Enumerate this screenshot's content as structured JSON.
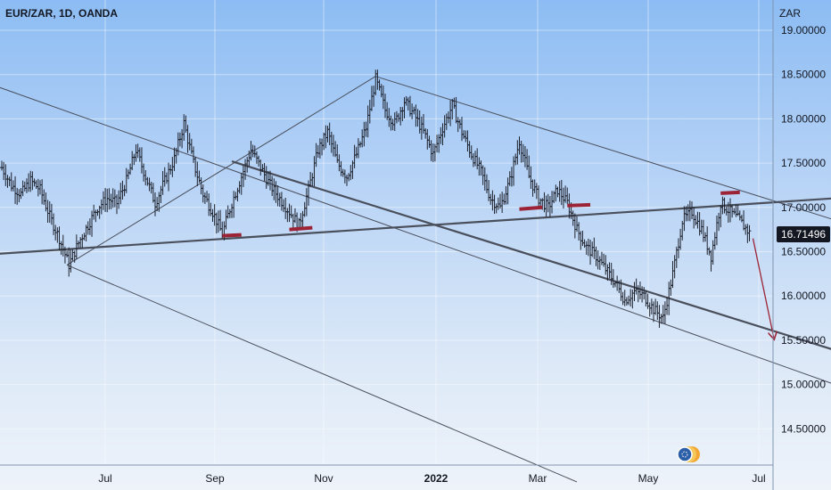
{
  "chart_data": {
    "type": "ohlc-bar",
    "title": "EUR/ZAR, 1D, OANDA",
    "currency": "ZAR",
    "current_price": "16.71496",
    "y_ticks": [
      "19.00000",
      "18.50000",
      "18.00000",
      "17.50000",
      "17.00000",
      "16.50000",
      "16.00000",
      "15.50000",
      "15.00000",
      "14.50000"
    ],
    "y_tick_values": [
      19.0,
      18.5,
      18.0,
      17.5,
      17.0,
      16.5,
      16.0,
      15.5,
      15.0,
      14.5
    ],
    "x_ticks": [
      {
        "label": "Jul",
        "bold": false
      },
      {
        "label": "Sep",
        "bold": false
      },
      {
        "label": "Nov",
        "bold": false
      },
      {
        "label": "2022",
        "bold": true
      },
      {
        "label": "Mar",
        "bold": false
      },
      {
        "label": "May",
        "bold": false
      },
      {
        "label": "Jul",
        "bold": false
      }
    ],
    "grid": true,
    "colors": {
      "bars": "#1e222d",
      "trendlines": "#4a4f5c",
      "support_marks": "#9b2335",
      "arrow": "#9b2335",
      "price_tag_bg": "#131722"
    },
    "price_path": [
      [
        0,
        17.45
      ],
      [
        5,
        17.25
      ],
      [
        10,
        17.15
      ],
      [
        15,
        17.3
      ],
      [
        20,
        17.2
      ],
      [
        25,
        16.9
      ],
      [
        30,
        16.65
      ],
      [
        35,
        16.35
      ],
      [
        40,
        16.6
      ],
      [
        45,
        16.8
      ],
      [
        50,
        17.0
      ],
      [
        55,
        17.1
      ],
      [
        60,
        17.05
      ],
      [
        65,
        17.3
      ],
      [
        70,
        17.65
      ],
      [
        75,
        17.35
      ],
      [
        80,
        17.05
      ],
      [
        85,
        17.3
      ],
      [
        90,
        17.55
      ],
      [
        95,
        17.95
      ],
      [
        100,
        17.5
      ],
      [
        105,
        17.15
      ],
      [
        110,
        16.95
      ],
      [
        115,
        16.7
      ],
      [
        120,
        17.05
      ],
      [
        125,
        17.35
      ],
      [
        130,
        17.65
      ],
      [
        135,
        17.45
      ],
      [
        140,
        17.25
      ],
      [
        145,
        17.1
      ],
      [
        150,
        16.95
      ],
      [
        155,
        16.8
      ],
      [
        160,
        17.2
      ],
      [
        165,
        17.65
      ],
      [
        170,
        17.85
      ],
      [
        175,
        17.5
      ],
      [
        180,
        17.35
      ],
      [
        185,
        17.6
      ],
      [
        190,
        17.9
      ],
      [
        195,
        18.45
      ],
      [
        200,
        18.1
      ],
      [
        205,
        17.95
      ],
      [
        210,
        18.2
      ],
      [
        215,
        18.05
      ],
      [
        220,
        17.85
      ],
      [
        225,
        17.6
      ],
      [
        230,
        17.9
      ],
      [
        235,
        18.15
      ],
      [
        240,
        17.85
      ],
      [
        245,
        17.6
      ],
      [
        250,
        17.4
      ],
      [
        255,
        17.1
      ],
      [
        260,
        17.0
      ],
      [
        265,
        17.3
      ],
      [
        270,
        17.75
      ],
      [
        275,
        17.35
      ],
      [
        280,
        17.1
      ],
      [
        285,
        17.0
      ],
      [
        290,
        17.2
      ],
      [
        295,
        17.05
      ],
      [
        300,
        16.75
      ],
      [
        305,
        16.55
      ],
      [
        310,
        16.45
      ],
      [
        315,
        16.3
      ],
      [
        320,
        16.15
      ],
      [
        325,
        15.95
      ],
      [
        330,
        16.05
      ],
      [
        335,
        16.0
      ],
      [
        340,
        15.85
      ],
      [
        345,
        15.75
      ],
      [
        350,
        16.25
      ],
      [
        355,
        16.85
      ],
      [
        360,
        16.95
      ],
      [
        365,
        16.75
      ],
      [
        370,
        16.45
      ],
      [
        375,
        17.05
      ],
      [
        380,
        16.95
      ],
      [
        385,
        16.85
      ],
      [
        390,
        16.71
      ]
    ],
    "trendlines": [
      {
        "name": "ascending-support-line",
        "from": [
          -20,
          16.45
        ],
        "to": [
          488,
          17.18
        ],
        "width": 2.2
      },
      {
        "name": "descending-channel-upper",
        "from": [
          195,
          18.48
        ],
        "to": [
          480,
          16.55
        ],
        "width": 1
      },
      {
        "name": "descending-channel-mid",
        "from": [
          -20,
          18.5
        ],
        "to": [
          480,
          14.65
        ],
        "width": 1
      },
      {
        "name": "descending-channel-lower",
        "from": [
          120,
          17.52
        ],
        "to": [
          480,
          15.08
        ],
        "width": 2.2
      },
      {
        "name": "pitchfork-left-arm",
        "from": [
          34,
          16.35
        ],
        "to": [
          195,
          18.48
        ],
        "width": 1
      },
      {
        "name": "pitchfork-lower-arm",
        "from": [
          34,
          16.35
        ],
        "to": [
          300,
          13.9
        ],
        "width": 1
      }
    ],
    "support_marks": [
      {
        "from": [
          115,
          16.68
        ],
        "to": [
          125,
          16.69
        ]
      },
      {
        "from": [
          150,
          16.75
        ],
        "to": [
          162,
          16.77
        ]
      },
      {
        "from": [
          270,
          16.98
        ],
        "to": [
          282,
          17.0
        ]
      },
      {
        "from": [
          295,
          17.02
        ],
        "to": [
          307,
          17.03
        ]
      },
      {
        "from": [
          375,
          17.16
        ],
        "to": [
          385,
          17.17
        ]
      }
    ],
    "forecast_arrow": {
      "from": [
        390,
        16.71
      ],
      "to": [
        400,
        15.52
      ]
    }
  }
}
